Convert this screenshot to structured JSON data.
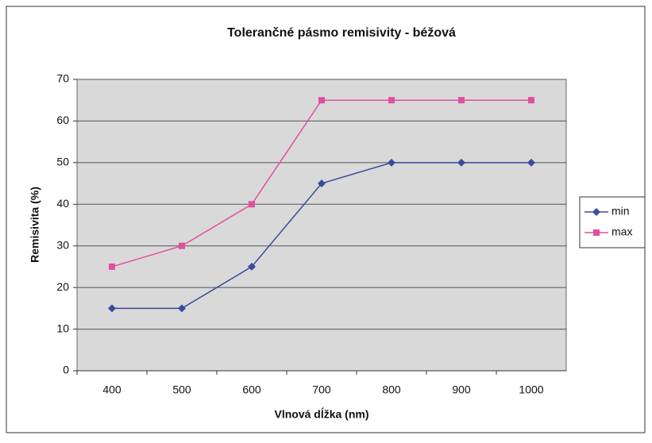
{
  "chart_data": {
    "type": "line",
    "title": "Tolerančné pásmo remisivity - béžová",
    "x_label": "Vlnová dĺžka (nm)",
    "y_label": "Remisivita (%)",
    "categories": [
      "400",
      "500",
      "600",
      "700",
      "800",
      "900",
      "1000"
    ],
    "series": [
      {
        "name": "min",
        "color": "#3a4c9c",
        "marker": "diamond",
        "values": [
          15,
          15,
          25,
          45,
          50,
          50,
          50
        ]
      },
      {
        "name": "max",
        "color": "#e0509e",
        "marker": "square",
        "values": [
          25,
          30,
          40,
          65,
          65,
          65,
          65
        ]
      }
    ],
    "ylim": [
      0,
      70
    ],
    "yticks": [
      0,
      10,
      20,
      30,
      40,
      50,
      60,
      70
    ],
    "grid": true,
    "legend": "right"
  }
}
